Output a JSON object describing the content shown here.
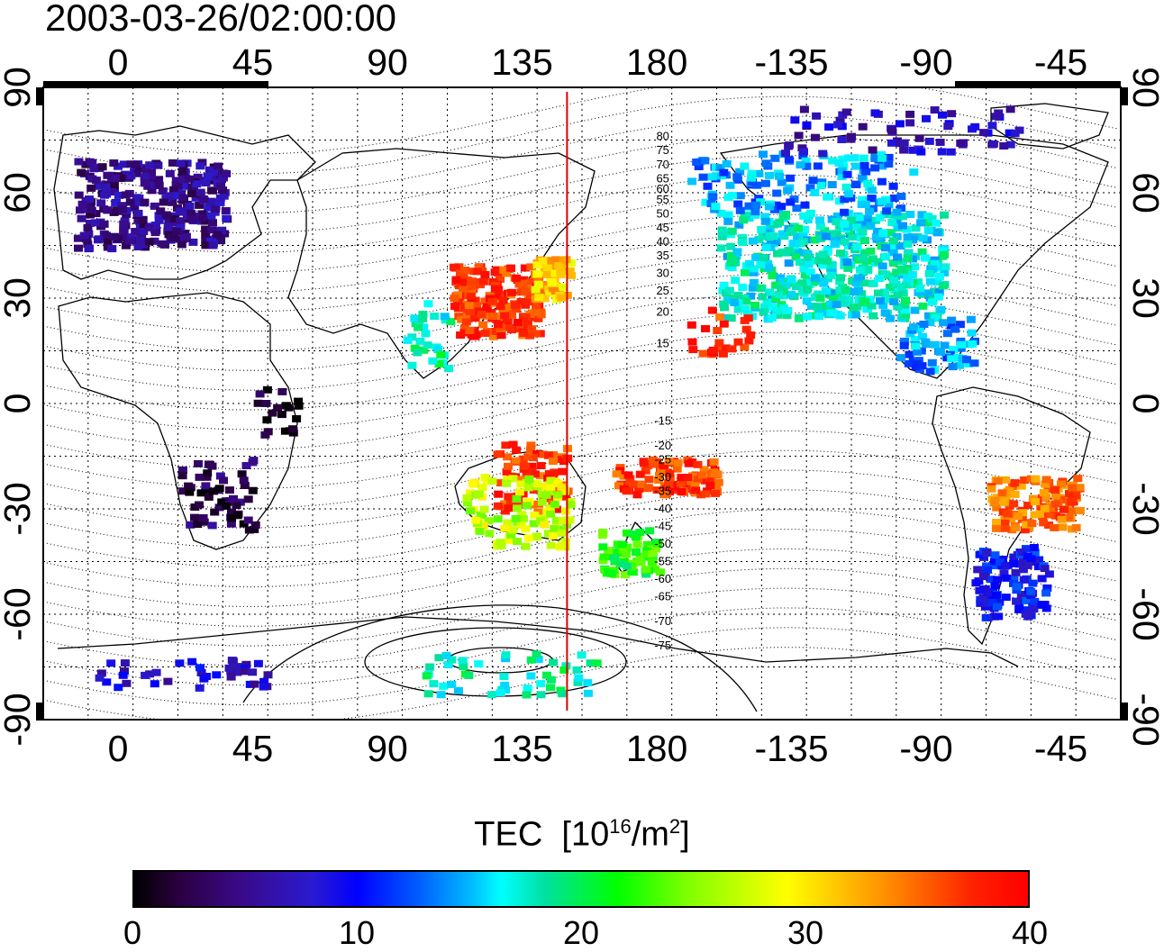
{
  "title": "2003-03-26/02:00:00",
  "map": {
    "lon_top_labels": [
      "0",
      "45",
      "90",
      "135",
      "180",
      "-135",
      "-90",
      "-45"
    ],
    "lon_bottom_labels": [
      "0",
      "45",
      "90",
      "135",
      "180",
      "-135",
      "-90",
      "-45"
    ],
    "lat_left_labels": [
      "90",
      "60",
      "30",
      "0",
      "-30",
      "-60",
      "-90"
    ],
    "lat_right_labels": [
      "90",
      "60",
      "30",
      "0",
      "-30",
      "-60",
      "-90"
    ],
    "meridian_marker_lon": 150,
    "meridian_marker_color": "#dd0000",
    "contour_labels": [
      "80",
      "75",
      "70",
      "65",
      "60",
      "55",
      "50",
      "45",
      "40",
      "35",
      "30",
      "25",
      "20",
      "15",
      "-15",
      "-20",
      "-25",
      "-30",
      "-35",
      "-40",
      "-45",
      "-50",
      "-55",
      "-60",
      "-65",
      "-70",
      "-75"
    ]
  },
  "colorbar": {
    "title": "TEC",
    "unit_prefix": "[10",
    "unit_exp": "16",
    "unit_mid": "/m",
    "unit_exp2": "2",
    "unit_suffix": "]",
    "ticks": [
      "0",
      "10",
      "20",
      "30",
      "40"
    ],
    "range": [
      0,
      40
    ]
  }
}
